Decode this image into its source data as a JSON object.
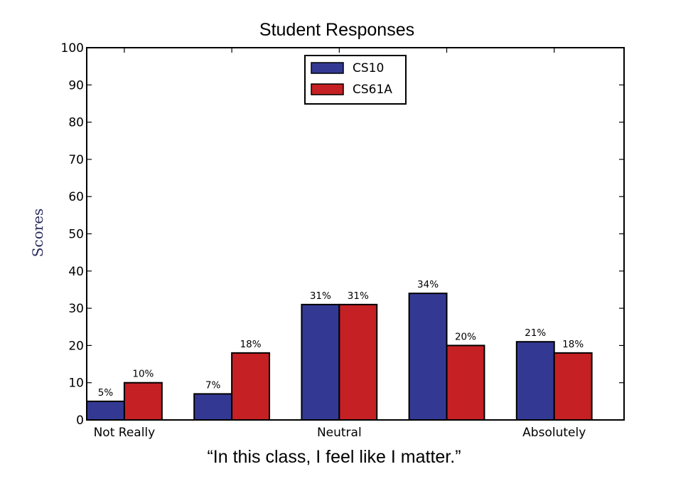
{
  "chart_data": {
    "type": "bar",
    "title": "Student Responses",
    "xlabel": "“In this class, I feel like I matter.”",
    "ylabel": "Scores",
    "categories": [
      "Not Really",
      "",
      "Neutral",
      "",
      "Absolutely"
    ],
    "series": [
      {
        "name": "CS10",
        "values": [
          5,
          7,
          31,
          34,
          21
        ],
        "labels": [
          "5%",
          "7%",
          "31%",
          "34%",
          "21%"
        ],
        "color": "#333993"
      },
      {
        "name": "CS61A",
        "values": [
          10,
          18,
          31,
          20,
          18
        ],
        "labels": [
          "10%",
          "18%",
          "31%",
          "20%",
          "18%"
        ],
        "color": "#c52024"
      }
    ],
    "ylim": [
      0,
      100
    ],
    "yticks": [
      0,
      10,
      20,
      30,
      40,
      50,
      60,
      70,
      80,
      90,
      100
    ],
    "grid": false,
    "legend_position": "top-center"
  }
}
